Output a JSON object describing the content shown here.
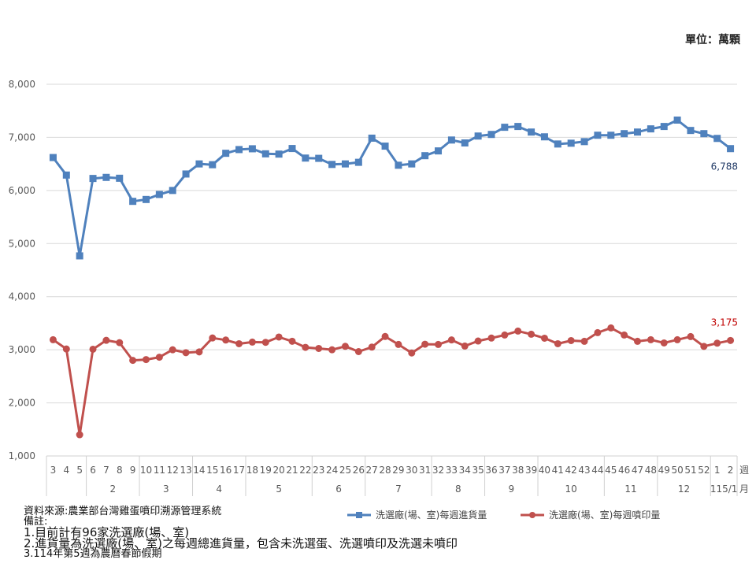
{
  "unit_label": "單位：萬顆",
  "footnotes": {
    "source": "資料來源:農業部台灣雞蛋噴印溯源管理系統",
    "remark_title": "備註:",
    "notes": [
      "1.目前計有96家洗選廠(場、室)",
      "2.進貨量為洗選廠(場、室)之每週總進貨量，包含未洗選蛋、洗選噴印及洗選未噴印",
      "3.114年第5週為農曆春節假期"
    ]
  },
  "legend": [
    {
      "name": "洗選廠(場、室)每週進貨量",
      "color": "#4f81bd",
      "marker": "square"
    },
    {
      "name": "洗選廠(場、室)每週噴印量",
      "color": "#c0504d",
      "marker": "circle"
    }
  ],
  "axis_titles": {
    "week": "週",
    "month": "月"
  },
  "chart_data": {
    "type": "line",
    "title": "",
    "unit": "單位：萬顆",
    "xlabel": "週 / 月",
    "ylabel": "",
    "ylim": [
      1000,
      8000
    ],
    "yticks": [
      1000,
      2000,
      3000,
      4000,
      5000,
      6000,
      7000,
      8000
    ],
    "ytick_labels": [
      "1,000",
      "2,000",
      "3,000",
      "4,000",
      "5,000",
      "6,000",
      "7,000",
      "8,000"
    ],
    "grid": true,
    "legend_position": "bottom",
    "categories": [
      "3",
      "4",
      "5",
      "6",
      "7",
      "8",
      "9",
      "10",
      "11",
      "12",
      "13",
      "14",
      "15",
      "16",
      "17",
      "18",
      "19",
      "20",
      "21",
      "22",
      "23",
      "24",
      "25",
      "26",
      "27",
      "28",
      "29",
      "30",
      "31",
      "32",
      "33",
      "34",
      "35",
      "36",
      "37",
      "38",
      "39",
      "40",
      "41",
      "42",
      "43",
      "44",
      "45",
      "46",
      "47",
      "48",
      "49",
      "50",
      "51",
      "52",
      "1",
      "2"
    ],
    "month_groups": [
      {
        "label": "",
        "count": 3
      },
      {
        "label": "2",
        "count": 4
      },
      {
        "label": "3",
        "count": 4
      },
      {
        "label": "4",
        "count": 4
      },
      {
        "label": "5",
        "count": 5
      },
      {
        "label": "6",
        "count": 4
      },
      {
        "label": "7",
        "count": 5
      },
      {
        "label": "8",
        "count": 4
      },
      {
        "label": "9",
        "count": 4
      },
      {
        "label": "10",
        "count": 5
      },
      {
        "label": "11",
        "count": 4
      },
      {
        "label": "12",
        "count": 4
      },
      {
        "label": "115/1",
        "count": 2
      }
    ],
    "series": [
      {
        "name": "洗選廠(場、室)每週進貨量",
        "color": "#4f81bd",
        "marker": "square",
        "last_label": "6,788",
        "last_label_color": "#1f3864",
        "values": [
          6620,
          6290,
          4768,
          6226,
          6246,
          6230,
          5795,
          5830,
          5925,
          6000,
          6310,
          6500,
          6485,
          6700,
          6770,
          6785,
          6690,
          6685,
          6790,
          6610,
          6605,
          6490,
          6500,
          6530,
          6985,
          6835,
          6475,
          6500,
          6655,
          6745,
          6950,
          6895,
          7025,
          7055,
          7190,
          7205,
          7100,
          7010,
          6875,
          6890,
          6920,
          7040,
          7040,
          7070,
          7100,
          7160,
          7205,
          7325,
          7130,
          7070,
          6980,
          6788
        ]
      },
      {
        "name": "洗選廠(場、室)每週噴印量",
        "color": "#c0504d",
        "marker": "circle",
        "last_label": "3,175",
        "last_label_color": "#c00000",
        "values": [
          3189,
          3015,
          1400,
          3010,
          3178,
          3134,
          2800,
          2815,
          2860,
          3000,
          2945,
          2960,
          3222,
          3183,
          3114,
          3144,
          3140,
          3240,
          3160,
          3045,
          3025,
          3000,
          3065,
          2965,
          3050,
          3250,
          3100,
          2940,
          3105,
          3100,
          3185,
          3070,
          3165,
          3220,
          3278,
          3352,
          3293,
          3218,
          3114,
          3173,
          3159,
          3322,
          3411,
          3278,
          3159,
          3189,
          3129,
          3189,
          3248,
          3064,
          3124,
          3175
        ]
      }
    ]
  }
}
